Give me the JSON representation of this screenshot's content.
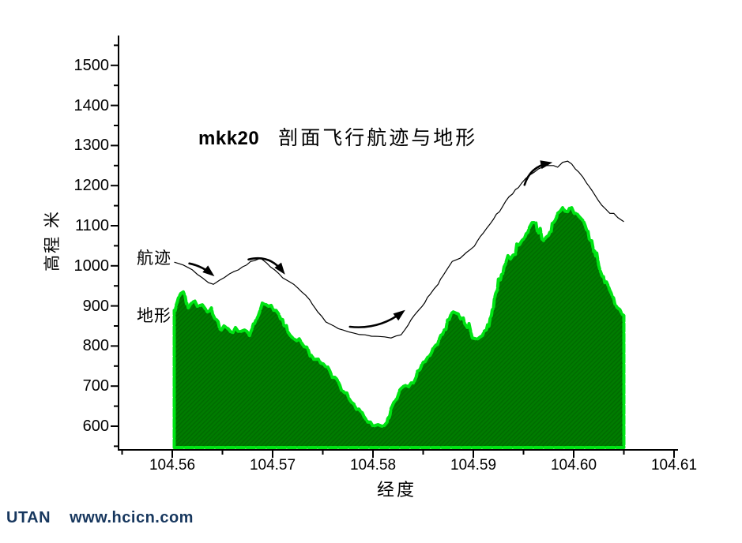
{
  "title": {
    "prefix": "mkk20",
    "main": "剖面飞行航迹与地形"
  },
  "watermark": {
    "brand": "UTAN",
    "site": "www.hcicn.com",
    "color": "#17375e"
  },
  "colors": {
    "background": "#ffffff",
    "axis": "#000000",
    "track_line": "#000000",
    "terrain_fill": "#007c00",
    "terrain_fill_dark": "#006a00",
    "terrain_outline": "#00e414"
  },
  "chart_data": {
    "type": "area",
    "title": "mkk20 剖面飞行航迹与地形",
    "xlabel": "经度",
    "ylabel": "高程 米",
    "xlim": [
      104.553,
      104.616
    ],
    "ylim": [
      545,
      1570
    ],
    "grid": false,
    "x_ticks": {
      "values": [
        104.56,
        104.57,
        104.58,
        104.59,
        104.6,
        104.61
      ],
      "labels": [
        "104.56",
        "104.57",
        "104.58",
        "104.59",
        "104.60",
        "104.61"
      ],
      "minor": [
        104.555,
        104.565,
        104.575,
        104.585,
        104.595,
        104.605
      ]
    },
    "y_ticks": {
      "values": [
        600,
        700,
        800,
        900,
        1000,
        1100,
        1200,
        1300,
        1400,
        1500
      ],
      "labels": [
        "600",
        "700",
        "800",
        "900",
        "1000",
        "1100",
        "1200",
        "1300",
        "1400",
        "1500"
      ],
      "minor": [
        550,
        650,
        750,
        850,
        950,
        1050,
        1150,
        1250,
        1350,
        1450,
        1550
      ]
    },
    "series": [
      {
        "name": "地形",
        "kind": "area",
        "points": [
          [
            104.5602,
            889
          ],
          [
            104.5606,
            919
          ],
          [
            104.5611,
            935
          ],
          [
            104.5616,
            895
          ],
          [
            104.562,
            909
          ],
          [
            104.5625,
            899
          ],
          [
            104.563,
            903
          ],
          [
            104.5635,
            885
          ],
          [
            104.5639,
            895
          ],
          [
            104.5644,
            866
          ],
          [
            104.5649,
            840
          ],
          [
            104.5654,
            846
          ],
          [
            104.5658,
            836
          ],
          [
            104.5663,
            846
          ],
          [
            104.5668,
            836
          ],
          [
            104.5672,
            840
          ],
          [
            104.5677,
            826
          ],
          [
            104.5682,
            856
          ],
          [
            104.5687,
            885
          ],
          [
            104.5691,
            905
          ],
          [
            104.5696,
            899
          ],
          [
            104.5701,
            889
          ],
          [
            104.5706,
            880
          ],
          [
            104.571,
            866
          ],
          [
            104.5715,
            836
          ],
          [
            104.572,
            820
          ],
          [
            104.5724,
            813
          ],
          [
            104.5729,
            807
          ],
          [
            104.5734,
            797
          ],
          [
            104.5739,
            777
          ],
          [
            104.5743,
            767
          ],
          [
            104.5748,
            757
          ],
          [
            104.5753,
            748
          ],
          [
            104.5757,
            738
          ],
          [
            104.5762,
            722
          ],
          [
            104.5767,
            702
          ],
          [
            104.5772,
            683
          ],
          [
            104.5776,
            669
          ],
          [
            104.5781,
            655
          ],
          [
            104.5786,
            643
          ],
          [
            104.5791,
            624
          ],
          [
            104.5795,
            610
          ],
          [
            104.58,
            600
          ],
          [
            104.5805,
            604
          ],
          [
            104.5809,
            600
          ],
          [
            104.5814,
            610
          ],
          [
            104.5819,
            649
          ],
          [
            104.5824,
            669
          ],
          [
            104.5828,
            694
          ],
          [
            104.5833,
            702
          ],
          [
            104.5838,
            708
          ],
          [
            104.5843,
            722
          ],
          [
            104.5847,
            742
          ],
          [
            104.5852,
            761
          ],
          [
            104.5857,
            777
          ],
          [
            104.5861,
            797
          ],
          [
            104.5866,
            817
          ],
          [
            104.5871,
            840
          ],
          [
            104.5876,
            866
          ],
          [
            104.588,
            885
          ],
          [
            104.5885,
            880
          ],
          [
            104.589,
            870
          ],
          [
            104.5894,
            846
          ],
          [
            104.5899,
            820
          ],
          [
            104.5904,
            817
          ],
          [
            104.5909,
            826
          ],
          [
            104.5913,
            840
          ],
          [
            104.5918,
            876
          ],
          [
            104.5923,
            935
          ],
          [
            104.5928,
            978
          ],
          [
            104.5932,
            1004
          ],
          [
            104.5937,
            1017
          ],
          [
            104.5942,
            1029
          ],
          [
            104.5946,
            1053
          ],
          [
            104.5951,
            1069
          ],
          [
            104.5956,
            1096
          ],
          [
            104.5961,
            1108
          ],
          [
            104.5965,
            1082
          ],
          [
            104.597,
            1063
          ],
          [
            104.5975,
            1076
          ],
          [
            104.598,
            1108
          ],
          [
            104.5984,
            1131
          ],
          [
            104.5989,
            1145
          ],
          [
            104.5994,
            1135
          ],
          [
            104.5998,
            1145
          ],
          [
            104.6003,
            1131
          ],
          [
            104.6008,
            1116
          ],
          [
            104.6013,
            1088
          ],
          [
            104.6017,
            1063
          ],
          [
            104.6022,
            1023
          ],
          [
            104.6027,
            984
          ],
          [
            104.6031,
            958
          ],
          [
            104.6036,
            939
          ],
          [
            104.6041,
            905
          ],
          [
            104.6046,
            891
          ],
          [
            104.605,
            876
          ]
        ]
      },
      {
        "name": "航迹",
        "kind": "line",
        "points": [
          [
            104.5602,
            1009
          ],
          [
            104.5611,
            1002
          ],
          [
            104.562,
            990
          ],
          [
            104.563,
            970
          ],
          [
            104.5636,
            958
          ],
          [
            104.5641,
            954
          ],
          [
            104.5647,
            964
          ],
          [
            104.5657,
            980
          ],
          [
            104.5666,
            990
          ],
          [
            104.5674,
            1002
          ],
          [
            104.5682,
            1013
          ],
          [
            104.5688,
            1019
          ],
          [
            104.5694,
            1007
          ],
          [
            104.5702,
            990
          ],
          [
            104.571,
            970
          ],
          [
            104.5717,
            960
          ],
          [
            104.5721,
            954
          ],
          [
            104.5729,
            935
          ],
          [
            104.5737,
            915
          ],
          [
            104.5745,
            885
          ],
          [
            104.5753,
            860
          ],
          [
            104.5761,
            850
          ],
          [
            104.577,
            840
          ],
          [
            104.5781,
            832
          ],
          [
            104.5792,
            828
          ],
          [
            104.5805,
            824
          ],
          [
            104.5818,
            820
          ],
          [
            104.5828,
            828
          ],
          [
            104.5835,
            852
          ],
          [
            104.5841,
            876
          ],
          [
            104.5849,
            899
          ],
          [
            104.5857,
            929
          ],
          [
            104.5865,
            954
          ],
          [
            104.5872,
            984
          ],
          [
            104.5879,
            1011
          ],
          [
            104.5887,
            1019
          ],
          [
            104.5893,
            1033
          ],
          [
            104.5901,
            1049
          ],
          [
            104.591,
            1082
          ],
          [
            104.592,
            1116
          ],
          [
            104.5929,
            1147
          ],
          [
            104.5939,
            1179
          ],
          [
            104.5948,
            1206
          ],
          [
            104.5956,
            1226
          ],
          [
            104.5965,
            1242
          ],
          [
            104.5973,
            1250
          ],
          [
            104.598,
            1250
          ],
          [
            104.5984,
            1246
          ],
          [
            104.5989,
            1258
          ],
          [
            104.5994,
            1261
          ],
          [
            104.5998,
            1254
          ],
          [
            104.6005,
            1234
          ],
          [
            104.6013,
            1206
          ],
          [
            104.6021,
            1177
          ],
          [
            104.6028,
            1151
          ],
          [
            104.6036,
            1131
          ],
          [
            104.6044,
            1120
          ],
          [
            104.605,
            1110
          ]
        ]
      }
    ],
    "arrows": [
      {
        "tail": [
          104.5617,
          1006
        ],
        "head": [
          104.5639,
          980
        ],
        "bend": 0.12
      },
      {
        "tail": [
          104.5676,
          1016
        ],
        "head": [
          104.571,
          986
        ],
        "bend": 0.33
      },
      {
        "tail": [
          104.5777,
          848
        ],
        "head": [
          104.5829,
          884
        ],
        "bend": -0.2
      },
      {
        "tail": [
          104.5951,
          1202
        ],
        "head": [
          104.5975,
          1256
        ],
        "bend": 0.3
      }
    ]
  }
}
